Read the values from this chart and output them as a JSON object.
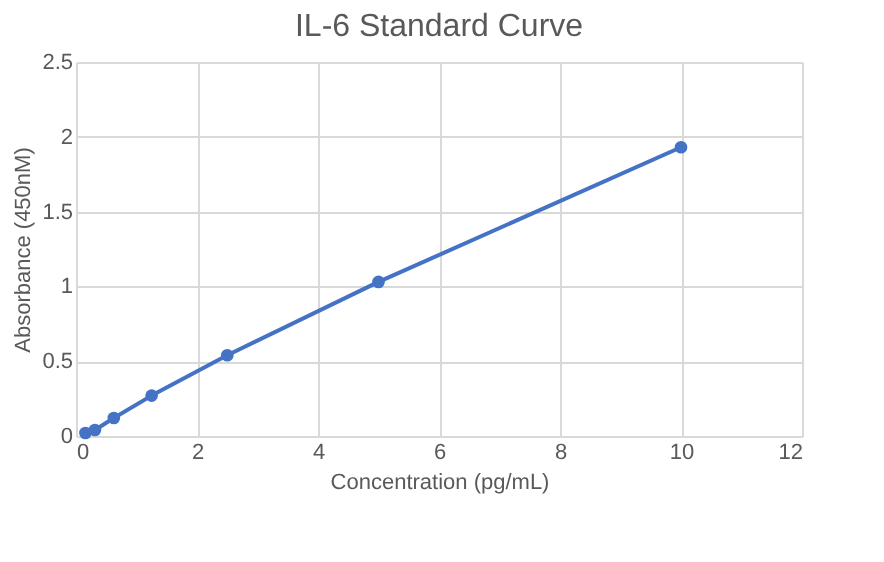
{
  "chart_data": {
    "type": "line",
    "title": "IL-6 Standard Curve",
    "xlabel": "Concentration (pg/mL)",
    "ylabel": "Absorbance (450nM)",
    "x": [
      0.156,
      0.313,
      0.625,
      1.25,
      2.5,
      5,
      10
    ],
    "series": [
      {
        "color": "#4472c4",
        "values": [
          0.02,
          0.04,
          0.12,
          0.27,
          0.54,
          1.03,
          1.93
        ]
      }
    ],
    "xlim": [
      0,
      12
    ],
    "xticks": [
      0,
      2,
      4,
      6,
      8,
      10,
      12
    ],
    "ylim": [
      0,
      2.5
    ],
    "yticks": [
      0,
      0.5,
      1,
      1.5,
      2,
      2.5
    ],
    "grid": true,
    "marker": "circle",
    "line_style": "solid"
  }
}
